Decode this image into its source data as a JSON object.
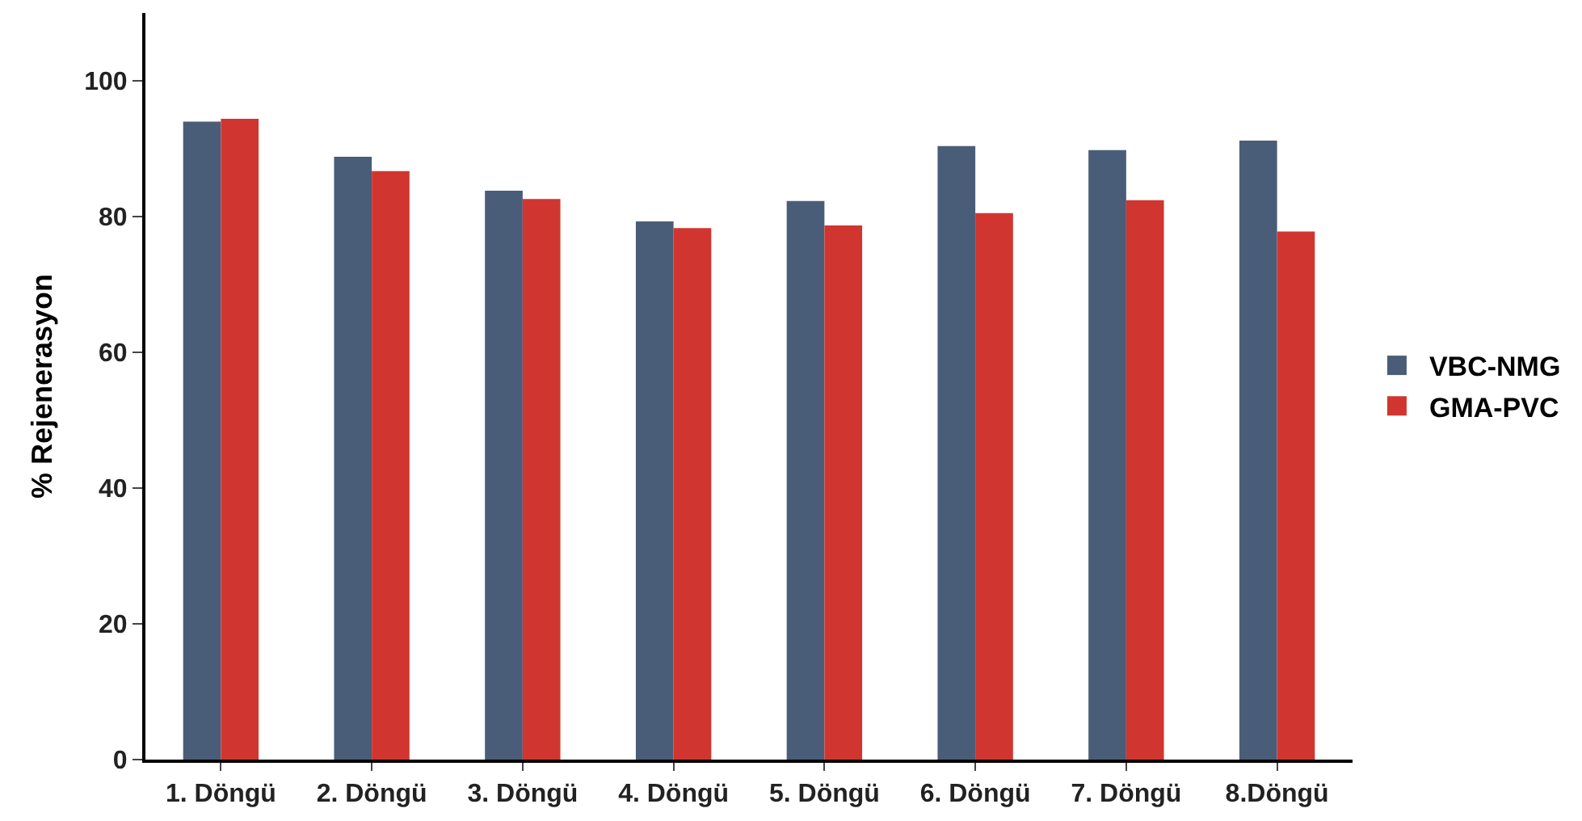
{
  "chart_data": {
    "type": "bar",
    "ylabel": "% Rejenerasyon",
    "categories": [
      "1. Döngü",
      "2. Döngü",
      "3. Döngü",
      "4. Döngü",
      "5. Döngü",
      "6. Döngü",
      "7. Döngü",
      "8.Döngü"
    ],
    "series": [
      {
        "name": "VBC-NMG",
        "color": "#4a5d78",
        "values": [
          94.0,
          88.8,
          83.8,
          79.3,
          82.3,
          90.4,
          89.8,
          91.2
        ]
      },
      {
        "name": "GMA-PVC",
        "color": "#d0362f",
        "values": [
          94.4,
          86.7,
          82.6,
          78.3,
          78.7,
          80.5,
          82.4,
          77.8
        ]
      }
    ],
    "ylim": [
      0,
      110
    ],
    "yticks": [
      0,
      20,
      40,
      60,
      80,
      100
    ],
    "legend": "right"
  }
}
